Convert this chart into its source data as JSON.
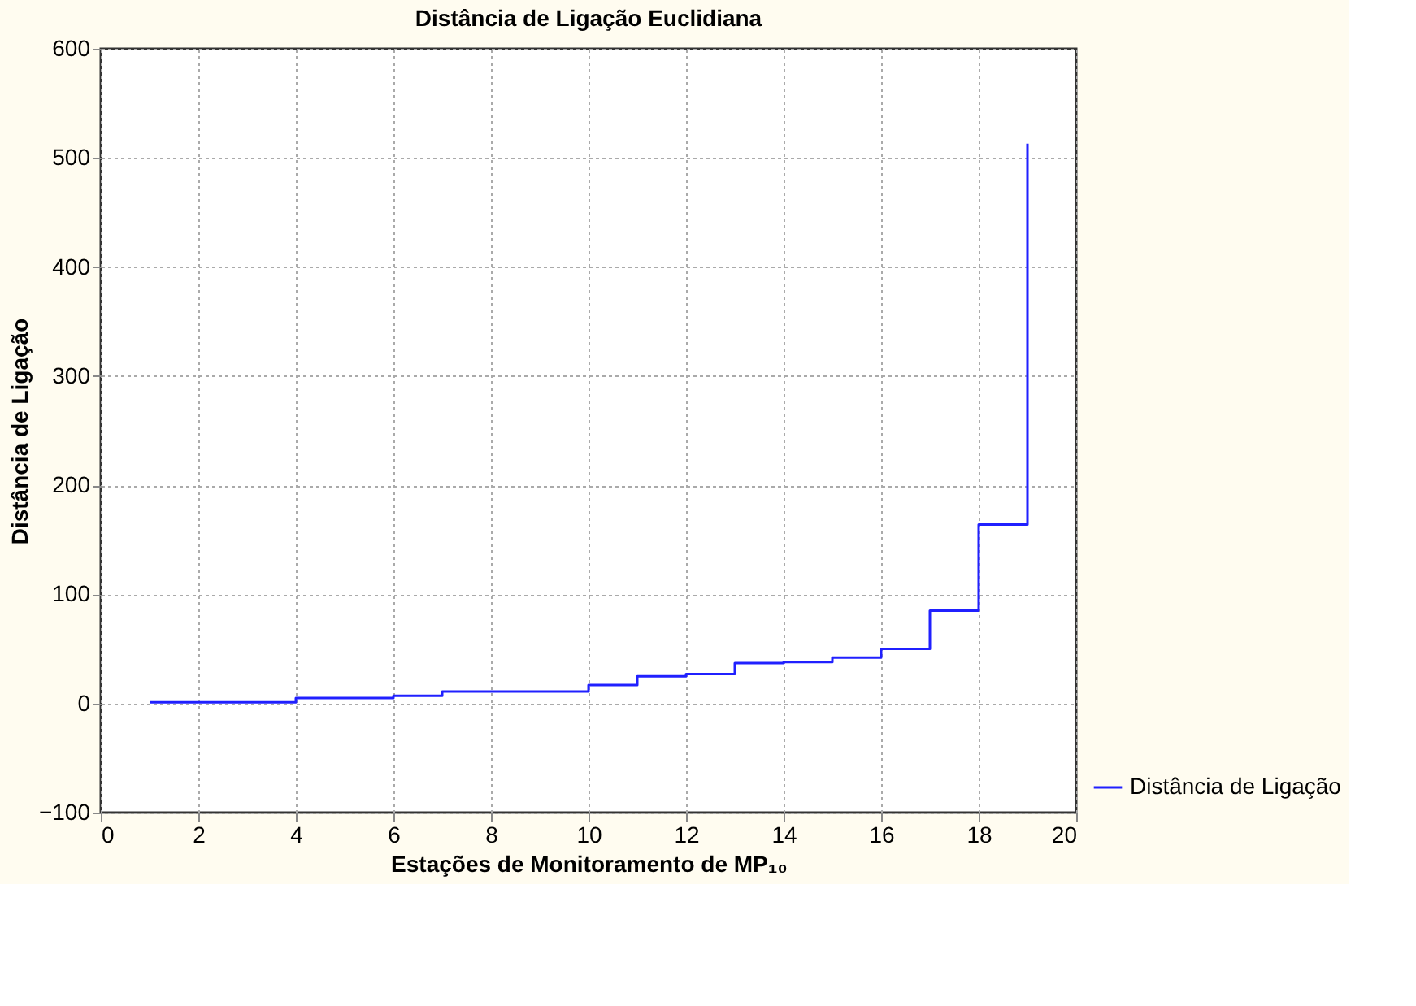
{
  "chart_data": {
    "type": "step",
    "title": "Distância de Ligação Euclidiana",
    "xlabel": "Estações de Monitoramento de MP₁₀",
    "ylabel": "Distância de Ligação",
    "x": [
      1,
      2,
      3,
      4,
      5,
      6,
      7,
      8,
      9,
      10,
      11,
      12,
      13,
      14,
      15,
      16,
      17,
      18,
      19
    ],
    "series": [
      {
        "name": "Distância de Ligação",
        "color": "#2020ff",
        "values": [
          1,
          1,
          1,
          5,
          5,
          7,
          11,
          11,
          11,
          17,
          25,
          27,
          37,
          38,
          42,
          50,
          85,
          164,
          513
        ]
      }
    ],
    "xlim": [
      0,
      20
    ],
    "xticks": [
      0,
      2,
      4,
      6,
      8,
      10,
      12,
      14,
      16,
      18,
      20
    ],
    "ylim": [
      -100,
      600
    ],
    "yticks": [
      -100,
      0,
      100,
      200,
      300,
      400,
      500,
      600
    ],
    "grid": true,
    "legend": "bottom right",
    "marker": "none",
    "line_style": "solid"
  }
}
